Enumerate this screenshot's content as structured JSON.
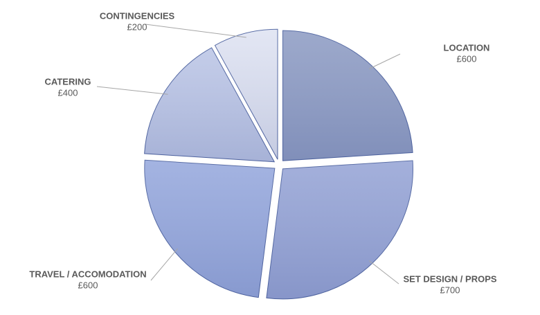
{
  "chart_data": {
    "type": "pie",
    "categories": [
      "LOCATION",
      "SET DESIGN / PROPS",
      "TRAVEL / ACCOMODATION",
      "CATERING",
      "CONTINGENCIES"
    ],
    "values": [
      600,
      700,
      600,
      400,
      200
    ],
    "value_labels": [
      "£600",
      "£700",
      "£600",
      "£400",
      "£200"
    ],
    "colors": [
      "#8f9dc4",
      "#97a5d6",
      "#97a9dd",
      "#bcc6e6",
      "#dfe3f2"
    ]
  }
}
